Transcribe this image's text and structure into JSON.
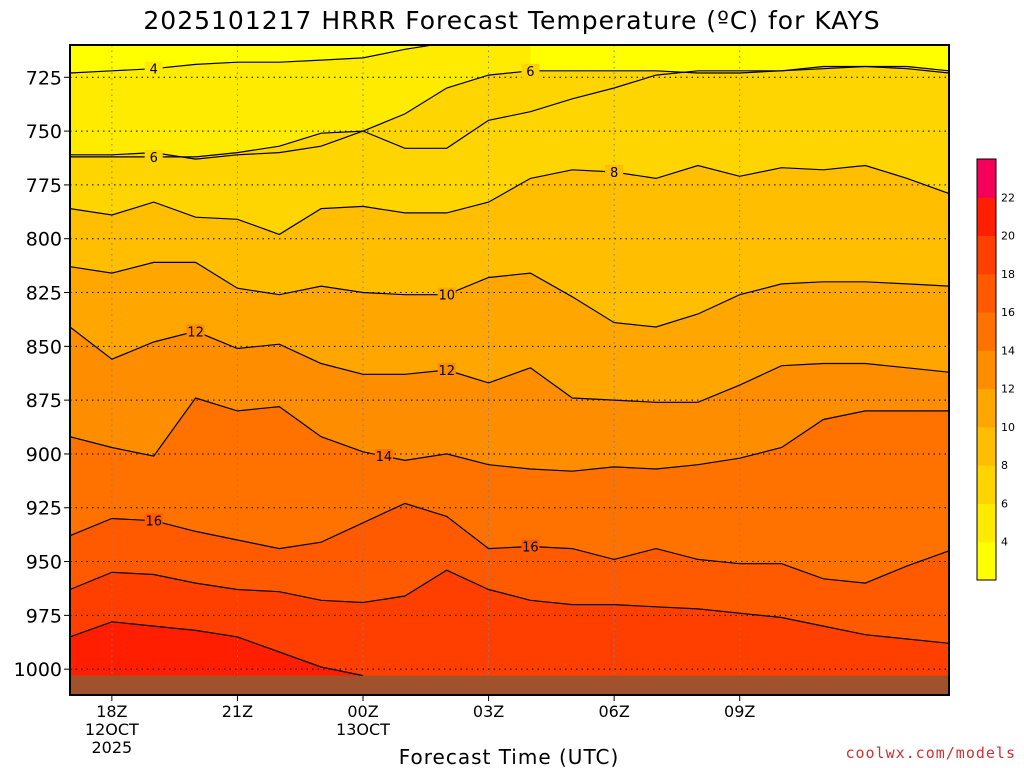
{
  "chart_data": {
    "type": "heatmap",
    "title": "2025101217 HRRR Forecast Temperature (ºC) for KAYS",
    "xlabel": "Forecast Time (UTC)",
    "ylabel": "",
    "x_hours": [
      0,
      21
    ],
    "x_ticks": [
      {
        "hour": 1,
        "lines": [
          "18Z",
          "12OCT",
          "2025"
        ]
      },
      {
        "hour": 4,
        "lines": [
          "21Z"
        ]
      },
      {
        "hour": 7,
        "lines": [
          "00Z",
          "13OCT"
        ]
      },
      {
        "hour": 10,
        "lines": [
          "03Z"
        ]
      },
      {
        "hour": 13,
        "lines": [
          "06Z"
        ]
      },
      {
        "hour": 16,
        "lines": [
          "09Z"
        ]
      }
    ],
    "y_pressure_range": [
      710,
      1012
    ],
    "y_ticks": [
      725,
      750,
      775,
      800,
      825,
      850,
      875,
      900,
      925,
      950,
      975,
      1000
    ],
    "surface_pressure": 1003,
    "colorbar": {
      "ticks": [
        4,
        6,
        8,
        10,
        12,
        14,
        16,
        18,
        20,
        22
      ],
      "levels": [
        2,
        4,
        6,
        8,
        10,
        12,
        14,
        16,
        18,
        20,
        22,
        24
      ],
      "colors": [
        "#ffff00",
        "#ffeb00",
        "#ffd500",
        "#ffbf00",
        "#ffa600",
        "#ff8d00",
        "#ff7200",
        "#ff5a00",
        "#ff3f00",
        "#ff1f00",
        "#f4005a"
      ]
    },
    "contours": [
      {
        "level": 4,
        "pressure": [
          723,
          722,
          721,
          719,
          718,
          718,
          717,
          716,
          712,
          709,
          705,
          701
        ],
        "label_hour": 2
      },
      {
        "level": 6,
        "pressure": [
          761,
          761,
          760,
          763,
          761,
          760,
          757,
          750,
          742,
          730,
          724,
          722,
          722,
          722,
          722,
          723,
          723,
          722,
          721,
          720,
          720,
          722
        ],
        "label_hour": 11
      },
      {
        "level": 6,
        "pressure": [
          762,
          762,
          762,
          762,
          760,
          757,
          751,
          750,
          758,
          758,
          745,
          741,
          735,
          730,
          724,
          722,
          722,
          722,
          720,
          720,
          721,
          723
        ],
        "label_hour": 2
      },
      {
        "level": 8,
        "pressure": [
          786,
          789,
          783,
          790,
          791,
          798,
          786,
          785,
          788,
          788,
          783,
          772,
          768,
          769,
          772,
          766,
          771,
          767,
          768,
          766,
          772,
          779
        ],
        "label_hour": 13
      },
      {
        "level": 10,
        "pressure": [
          813,
          816,
          811,
          811,
          823,
          826,
          822,
          825,
          826,
          826,
          818,
          816,
          827,
          839,
          841,
          835,
          826,
          821,
          820,
          820,
          821,
          822
        ],
        "label_hour": 9
      },
      {
        "level": 12,
        "pressure": [
          841,
          856,
          848,
          843,
          851,
          849,
          858,
          863,
          863,
          861,
          867,
          860,
          874,
          875,
          876,
          876,
          868,
          859,
          858,
          858,
          860,
          862
        ],
        "label_hour": 3
      },
      {
        "level": 12,
        "pressure": [
          841,
          856,
          848,
          843,
          851,
          849,
          858,
          863,
          863,
          861,
          867,
          860,
          874,
          875,
          876,
          876,
          868,
          859,
          858,
          858,
          860,
          862
        ],
        "label_hour": 9
      },
      {
        "level": 14,
        "pressure": [
          892,
          897,
          901,
          874,
          880,
          878,
          892,
          899,
          903,
          900,
          905,
          907,
          908,
          906,
          907,
          905,
          902,
          897,
          884,
          880,
          880,
          880
        ],
        "label_hour": 7.5
      },
      {
        "level": 16,
        "pressure": [
          938,
          930,
          931,
          936,
          940,
          944,
          941,
          932,
          923,
          929,
          944,
          943,
          944,
          949,
          944,
          949,
          951,
          951,
          958,
          960,
          952,
          945
        ],
        "label_hour": 2
      },
      {
        "level": 16,
        "pressure": [
          938,
          930,
          931,
          936,
          940,
          944,
          941,
          932,
          923,
          929,
          944,
          943,
          944,
          949,
          944,
          949,
          951,
          951,
          958,
          960,
          952,
          945
        ],
        "label_hour": 11
      },
      {
        "level": 18,
        "pressure": [
          963,
          955,
          956,
          960,
          963,
          964,
          968,
          969,
          966,
          954,
          963,
          968,
          970,
          970,
          971,
          972,
          974,
          976,
          980,
          984,
          986,
          988
        ]
      },
      {
        "level": 20,
        "pressure": [
          985,
          978,
          980,
          982,
          985,
          992,
          999,
          1003
        ]
      }
    ]
  },
  "credit": "coolwx.com/models"
}
